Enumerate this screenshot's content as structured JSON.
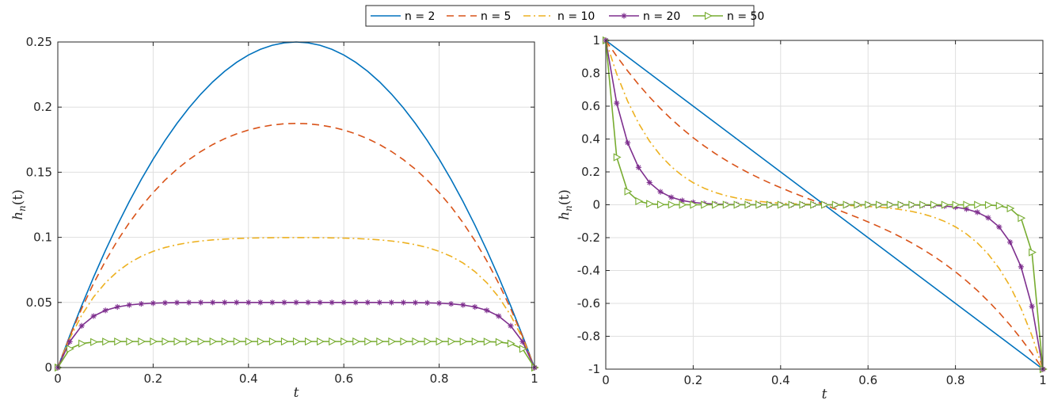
{
  "legend": {
    "placement": "top-center",
    "entries": [
      "n = 2",
      "n = 5",
      "n = 10",
      "n = 20",
      "n = 50"
    ]
  },
  "series_styles": [
    {
      "name": "n = 2",
      "color": "#0072BD",
      "dash": "solid",
      "marker": "none"
    },
    {
      "name": "n = 5",
      "color": "#D95319",
      "dash": "dashed",
      "marker": "none"
    },
    {
      "name": "n = 10",
      "color": "#EDB120",
      "dash": "dashdot",
      "marker": "none"
    },
    {
      "name": "n = 20",
      "color": "#7E2F8E",
      "dash": "solid",
      "marker": "asterisk"
    },
    {
      "name": "n = 50",
      "color": "#77AC30",
      "dash": "solid",
      "marker": "triangle-right"
    }
  ],
  "chart_data": [
    {
      "type": "line",
      "title": "",
      "xlabel": "t",
      "ylabel": "h_n(t)",
      "ylabel_base": "h",
      "ylabel_sub": "n",
      "ylabel_arg": "(t)",
      "xlim": [
        0,
        1
      ],
      "ylim": [
        0,
        0.25
      ],
      "xticks": [
        0,
        0.2,
        0.4,
        0.6,
        0.8,
        1
      ],
      "xtick_labels": [
        "0",
        "0.2",
        "0.4",
        "0.6",
        "0.8",
        "1"
      ],
      "yticks": [
        0,
        0.05,
        0.1,
        0.15,
        0.2,
        0.25
      ],
      "ytick_labels": [
        "0",
        "0.05",
        "0.1",
        "0.15",
        "0.2",
        "0.25"
      ],
      "grid": true,
      "function": "h_n(t) = (1 - t^n - (1-t)^n) / n",
      "ns": [
        2,
        5,
        10,
        20,
        50
      ],
      "samples": 41,
      "peak_values": [
        0.25,
        0.1875,
        0.0998,
        0.05,
        0.02
      ]
    },
    {
      "type": "line",
      "title": "",
      "xlabel": "t",
      "ylabel": "h_n(t)",
      "ylabel_base": "h",
      "ylabel_sub": "n",
      "ylabel_arg": "(t)",
      "xlim": [
        0,
        1
      ],
      "ylim": [
        -1,
        1
      ],
      "xticks": [
        0,
        0.2,
        0.4,
        0.6,
        0.8,
        1
      ],
      "xtick_labels": [
        "0",
        "0.2",
        "0.4",
        "0.6",
        "0.8",
        "1"
      ],
      "yticks": [
        -1,
        -0.8,
        -0.6,
        -0.4,
        -0.2,
        0,
        0.2,
        0.4,
        0.6,
        0.8,
        1
      ],
      "ytick_labels": [
        "-1",
        "-0.8",
        "-0.6",
        "-0.4",
        "-0.2",
        "0",
        "0.2",
        "0.4",
        "0.6",
        "0.8",
        "1"
      ],
      "grid": true,
      "function": "h_n(t) = (1-t)^(n-1) - t^(n-1)",
      "ns": [
        2,
        5,
        10,
        20,
        50
      ],
      "samples": 41,
      "endpoint_values": [
        1,
        -1
      ]
    }
  ]
}
